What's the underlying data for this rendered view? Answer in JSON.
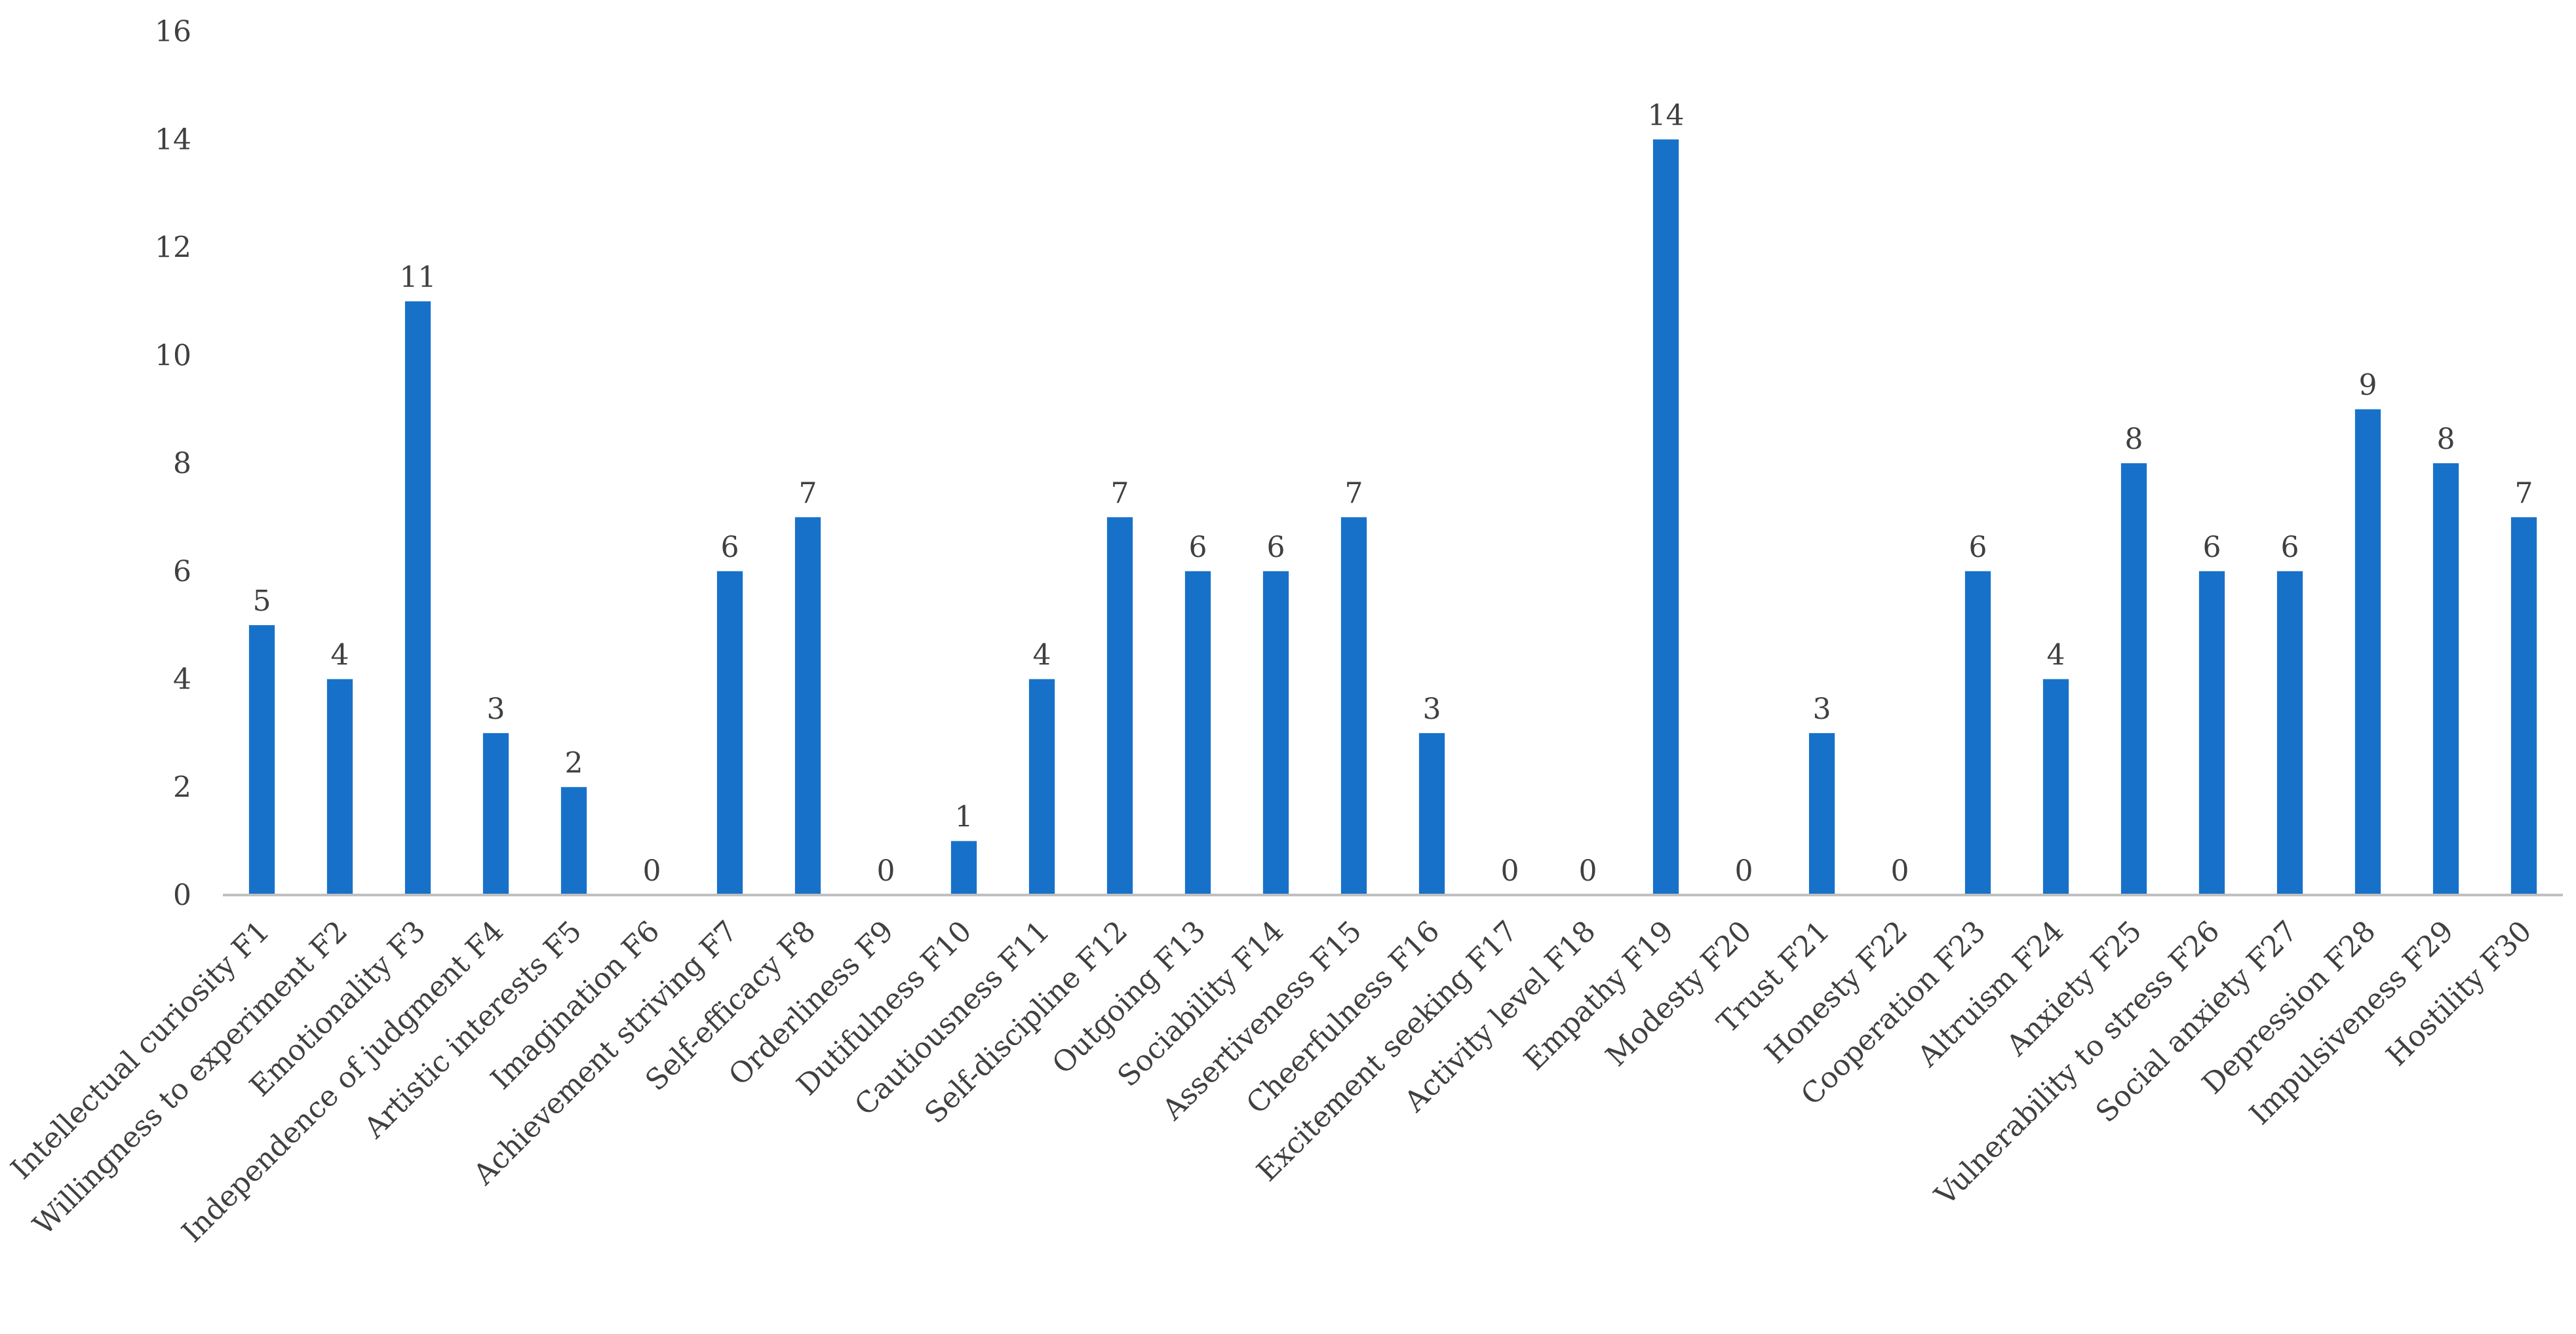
{
  "colors": {
    "bar": "#1871C9",
    "axis": "#C0C0C0",
    "text": "#404040"
  },
  "chart_data": {
    "type": "bar",
    "title": "",
    "xlabel": "",
    "ylabel": "",
    "ylim": [
      0,
      16
    ],
    "yticks": [
      "0",
      "2",
      "4",
      "6",
      "8",
      "10",
      "12",
      "14",
      "16"
    ],
    "grid": false,
    "categories": [
      "Intellectual curiosity F1",
      "Willingness to experiment F2",
      "Emotionality F3",
      "Independence of judgment F4",
      "Artistic interests F5",
      "Imagination F6",
      "Achievement striving F7",
      "Self-efficacy F8",
      "Orderliness F9",
      "Dutifulness F10",
      "Cautiousness F11",
      "Self-discipline F12",
      "Outgoing F13",
      "Sociability F14",
      "Assertiveness F15",
      "Cheerfulness F16",
      "Excitement seeking F17",
      "Activity level F18",
      "Empathy F19",
      "Modesty F20",
      "Trust F21",
      "Honesty F22",
      "Cooperation F23",
      "Altruism F24",
      "Anxiety F25",
      "Vulnerability to stress F26",
      "Social anxiety F27",
      "Depression F28",
      "Impulsiveness F29",
      "Hostility F30"
    ],
    "values": [
      5,
      4,
      11,
      3,
      2,
      0,
      6,
      7,
      0,
      1,
      4,
      7,
      6,
      6,
      7,
      3,
      0,
      0,
      14,
      0,
      3,
      0,
      6,
      4,
      8,
      6,
      6,
      9,
      8,
      7
    ],
    "data_labels": [
      "5",
      "4",
      "11",
      "3",
      "2",
      "0",
      "6",
      "7",
      "0",
      "1",
      "4",
      "7",
      "6",
      "6",
      "7",
      "3",
      "0",
      "0",
      "14",
      "0",
      "3",
      "0",
      "6",
      "4",
      "8",
      "6",
      "6",
      "9",
      "8",
      "7"
    ]
  }
}
